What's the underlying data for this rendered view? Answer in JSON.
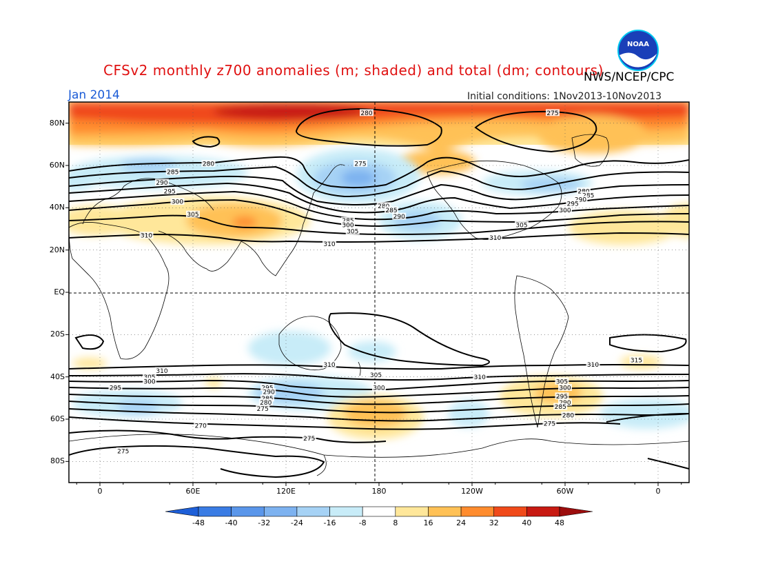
{
  "title": "CFSv2 monthly z700 anomalies (m; shaded) and total (dm; contours)",
  "agency": "NWS/NCEP/CPC",
  "logo_text": "NOAA",
  "valid_month": "Jan 2014",
  "initial_conditions": "Initial conditions: 1Nov2013-10Nov2013",
  "map": {
    "lat_labels": [
      {
        "text": "80N",
        "lat": 80
      },
      {
        "text": "60N",
        "lat": 60
      },
      {
        "text": "40N",
        "lat": 40
      },
      {
        "text": "20N",
        "lat": 20
      },
      {
        "text": "EQ",
        "lat": 0
      },
      {
        "text": "20S",
        "lat": -20
      },
      {
        "text": "40S",
        "lat": -40
      },
      {
        "text": "60S",
        "lat": -60
      },
      {
        "text": "80S",
        "lat": -80
      }
    ],
    "lon_labels": [
      {
        "text": "0",
        "lon": 0
      },
      {
        "text": "60E",
        "lon": 60
      },
      {
        "text": "120E",
        "lon": 120
      },
      {
        "text": "180",
        "lon": 180
      },
      {
        "text": "120W",
        "lon": 240
      },
      {
        "text": "60W",
        "lon": 300
      },
      {
        "text": "0",
        "lon": 360
      }
    ],
    "lat_range": [
      -90,
      90
    ],
    "lon_range": [
      -20,
      380
    ],
    "contour_labels": [
      {
        "text": "280",
        "lon": 172,
        "lat": 85
      },
      {
        "text": "275",
        "lon": 292,
        "lat": 85
      },
      {
        "text": "280",
        "lon": 70,
        "lat": 61
      },
      {
        "text": "285",
        "lon": 47,
        "lat": 57
      },
      {
        "text": "290",
        "lon": 40,
        "lat": 52
      },
      {
        "text": "295",
        "lon": 45,
        "lat": 48
      },
      {
        "text": "300",
        "lon": 50,
        "lat": 43
      },
      {
        "text": "305",
        "lon": 60,
        "lat": 37
      },
      {
        "text": "310",
        "lon": 30,
        "lat": 27
      },
      {
        "text": "275",
        "lon": 168,
        "lat": 61
      },
      {
        "text": "280",
        "lon": 183,
        "lat": 41
      },
      {
        "text": "285",
        "lon": 188,
        "lat": 39
      },
      {
        "text": "290",
        "lon": 193,
        "lat": 36
      },
      {
        "text": "285",
        "lon": 160,
        "lat": 34
      },
      {
        "text": "300",
        "lon": 160,
        "lat": 32
      },
      {
        "text": "305",
        "lon": 163,
        "lat": 29
      },
      {
        "text": "310",
        "lon": 148,
        "lat": 23
      },
      {
        "text": "280",
        "lon": 312,
        "lat": 48
      },
      {
        "text": "285",
        "lon": 315,
        "lat": 46
      },
      {
        "text": "290",
        "lon": 310,
        "lat": 44
      },
      {
        "text": "295",
        "lon": 305,
        "lat": 42
      },
      {
        "text": "300",
        "lon": 300,
        "lat": 39
      },
      {
        "text": "305",
        "lon": 272,
        "lat": 32
      },
      {
        "text": "310",
        "lon": 255,
        "lat": 26
      },
      {
        "text": "310",
        "lon": 148,
        "lat": -34
      },
      {
        "text": "310",
        "lon": 40,
        "lat": -37
      },
      {
        "text": "305",
        "lon": 32,
        "lat": -40
      },
      {
        "text": "300",
        "lon": 32,
        "lat": -42
      },
      {
        "text": "295",
        "lon": 10,
        "lat": -45
      },
      {
        "text": "305",
        "lon": 178,
        "lat": -39
      },
      {
        "text": "300",
        "lon": 180,
        "lat": -45
      },
      {
        "text": "295",
        "lon": 108,
        "lat": -45
      },
      {
        "text": "290",
        "lon": 109,
        "lat": -47
      },
      {
        "text": "285",
        "lon": 108,
        "lat": -50
      },
      {
        "text": "280",
        "lon": 107,
        "lat": -52
      },
      {
        "text": "275",
        "lon": 105,
        "lat": -55
      },
      {
        "text": "270",
        "lon": 65,
        "lat": -63
      },
      {
        "text": "275",
        "lon": 135,
        "lat": -69
      },
      {
        "text": "275",
        "lon": 15,
        "lat": -75
      },
      {
        "text": "310",
        "lon": 245,
        "lat": -40
      },
      {
        "text": "310",
        "lon": 318,
        "lat": -34
      },
      {
        "text": "315",
        "lon": 346,
        "lat": -32
      },
      {
        "text": "305",
        "lon": 298,
        "lat": -42
      },
      {
        "text": "300",
        "lon": 300,
        "lat": -45
      },
      {
        "text": "295",
        "lon": 298,
        "lat": -49
      },
      {
        "text": "290",
        "lon": 300,
        "lat": -52
      },
      {
        "text": "285",
        "lon": 297,
        "lat": -54
      },
      {
        "text": "280",
        "lon": 302,
        "lat": -58
      },
      {
        "text": "275",
        "lon": 290,
        "lat": -62
      }
    ]
  },
  "colorbar": {
    "ticks": [
      "-48",
      "-40",
      "-32",
      "-24",
      "-16",
      "-8",
      "8",
      "16",
      "24",
      "32",
      "40",
      "48"
    ],
    "colors": [
      "#1e5fd8",
      "#3a7ce4",
      "#5a96ea",
      "#7db2f0",
      "#a6d2f5",
      "#c8ecf8",
      "#ffffff",
      "#ffe79a",
      "#ffc156",
      "#ff8c2e",
      "#f04a1a",
      "#c81a12",
      "#9c0d0d"
    ]
  },
  "colors": {
    "title": "#e01010",
    "valid_month": "#1a5bd6"
  }
}
